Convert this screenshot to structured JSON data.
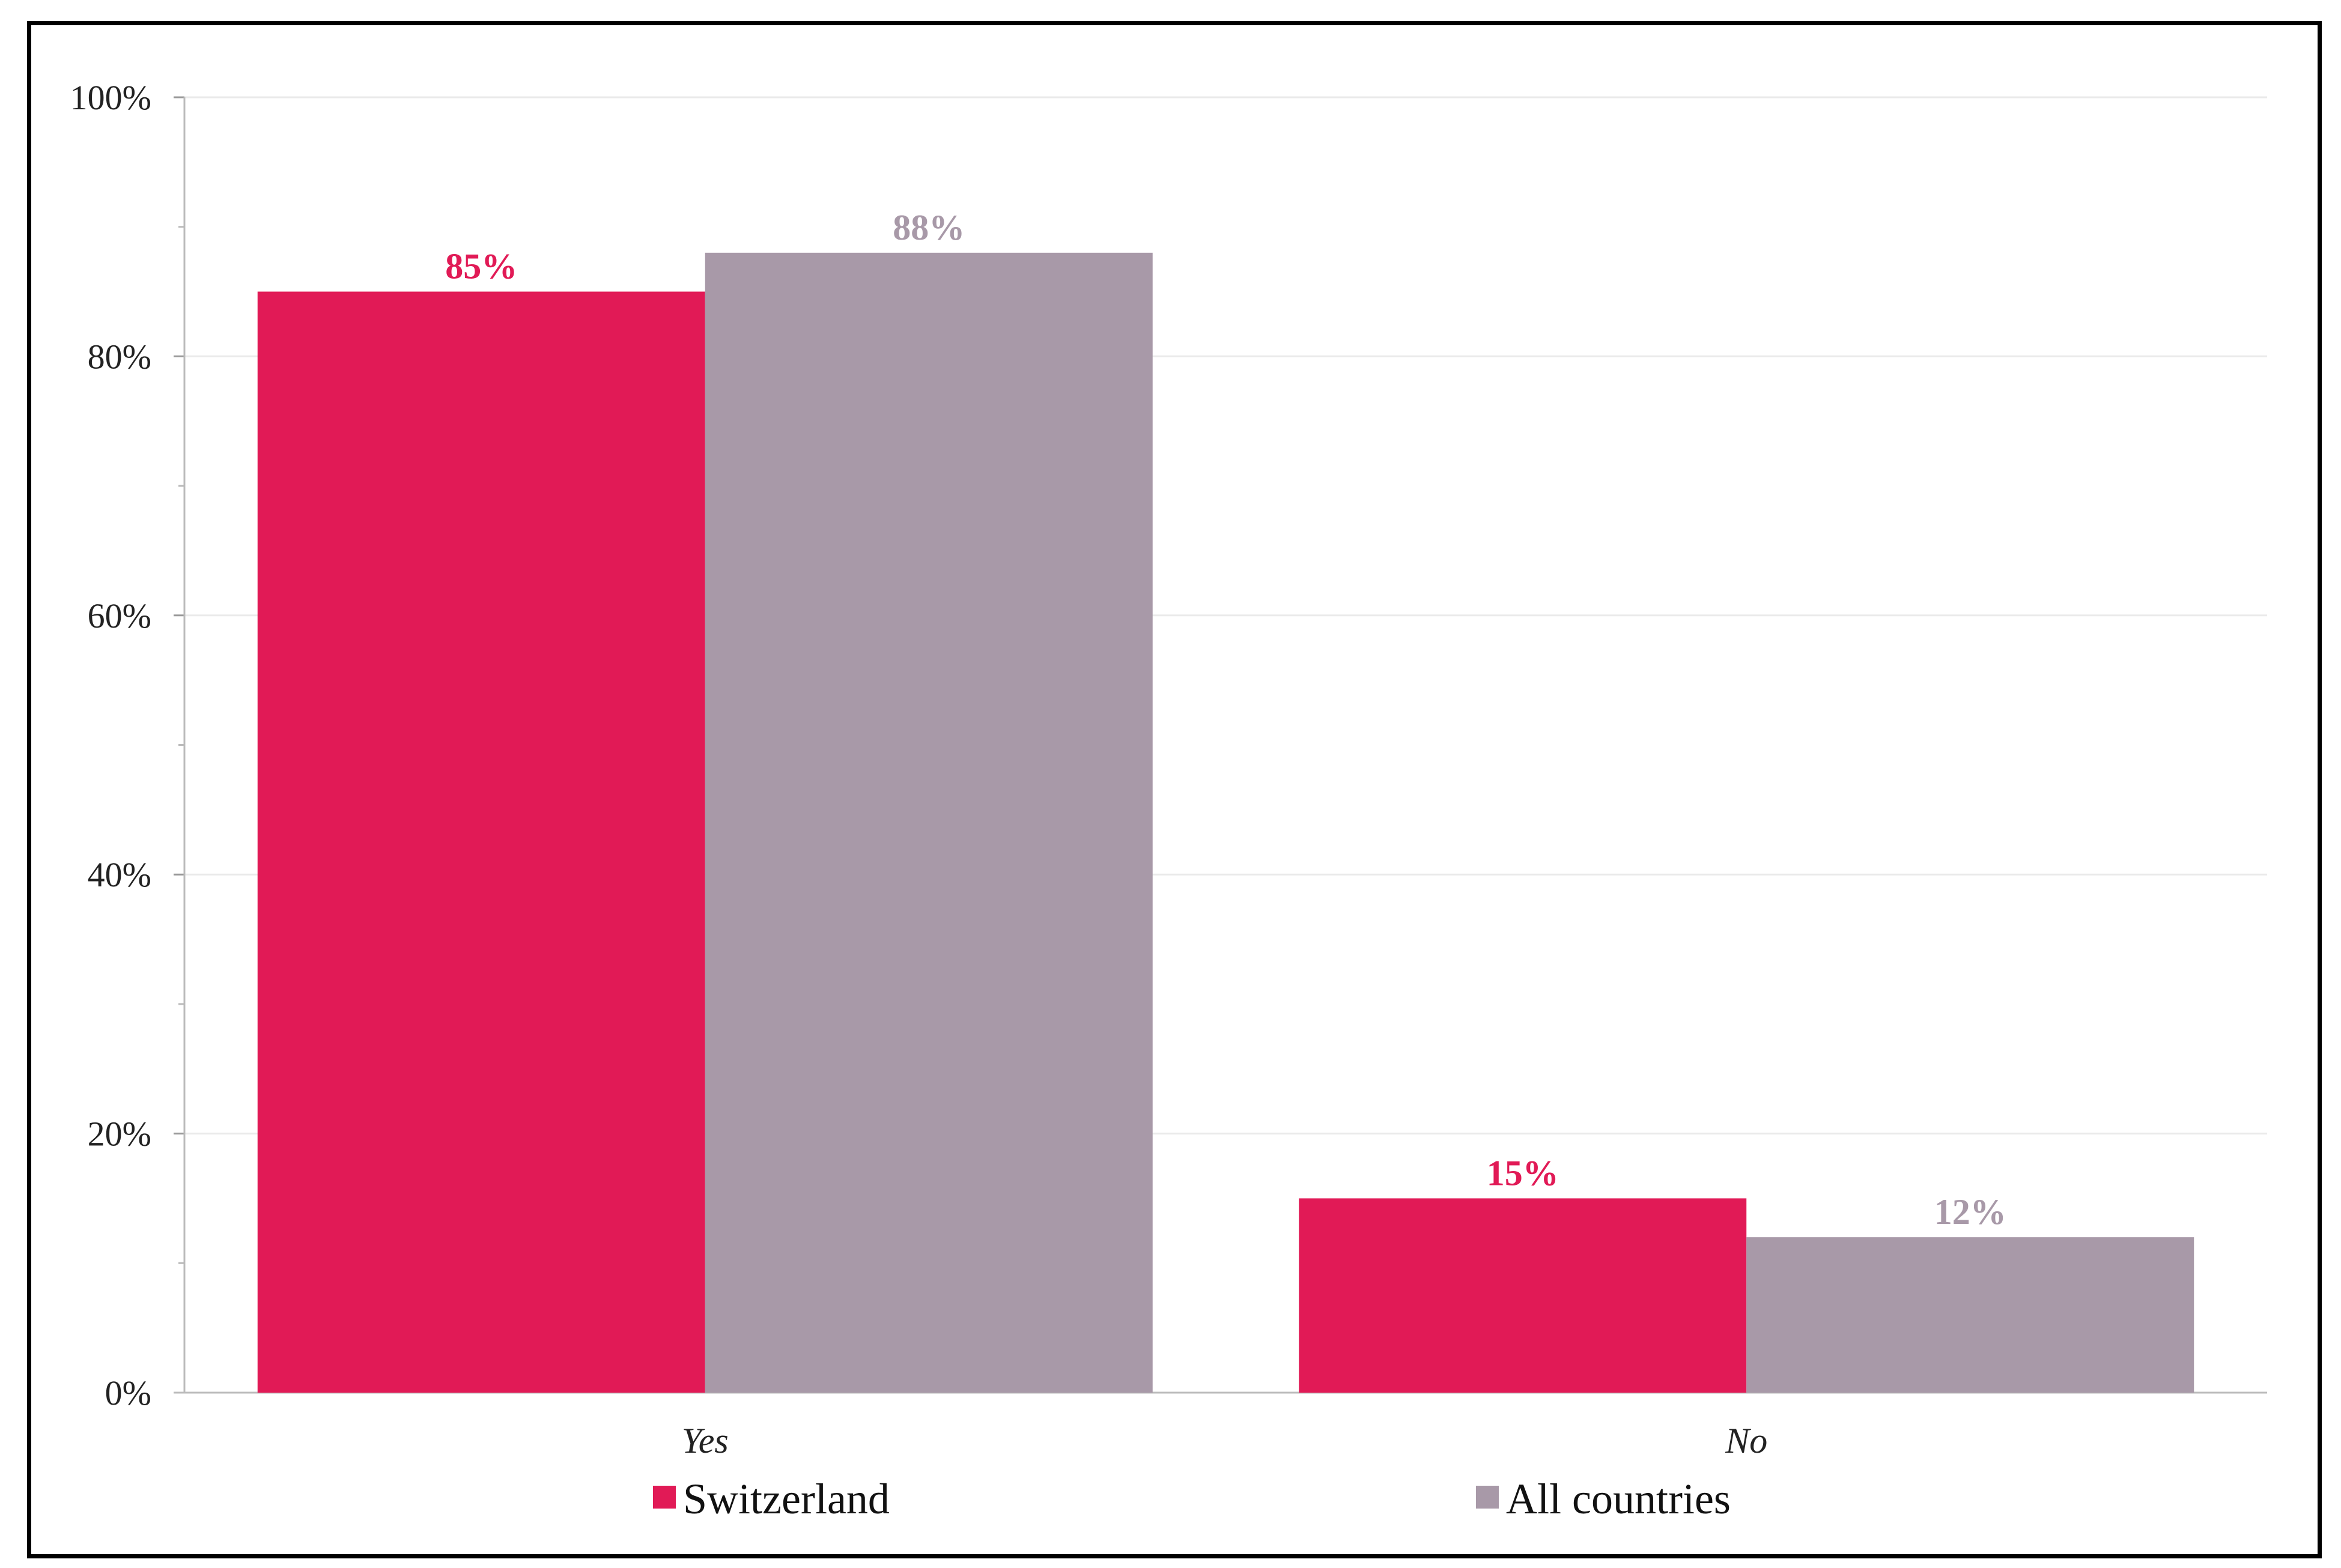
{
  "chart_data": {
    "type": "bar",
    "title": "",
    "xlabel": "",
    "ylabel": "",
    "categories": [
      "Yes",
      "No"
    ],
    "series": [
      {
        "name": "Switzerland",
        "values": [
          85,
          15
        ],
        "labels": [
          "85%",
          "15%"
        ],
        "color": "#E11A56"
      },
      {
        "name": "All countries",
        "values": [
          88,
          12
        ],
        "labels": [
          "88%",
          "12%"
        ],
        "color": "#A899A8"
      }
    ],
    "ylim": [
      0,
      100
    ],
    "yticks": [
      0,
      20,
      40,
      60,
      80,
      100
    ],
    "ytick_labels": [
      "0%",
      "20%",
      "40%",
      "60%",
      "80%",
      "100%"
    ],
    "grid": true,
    "legend_position": "bottom"
  }
}
